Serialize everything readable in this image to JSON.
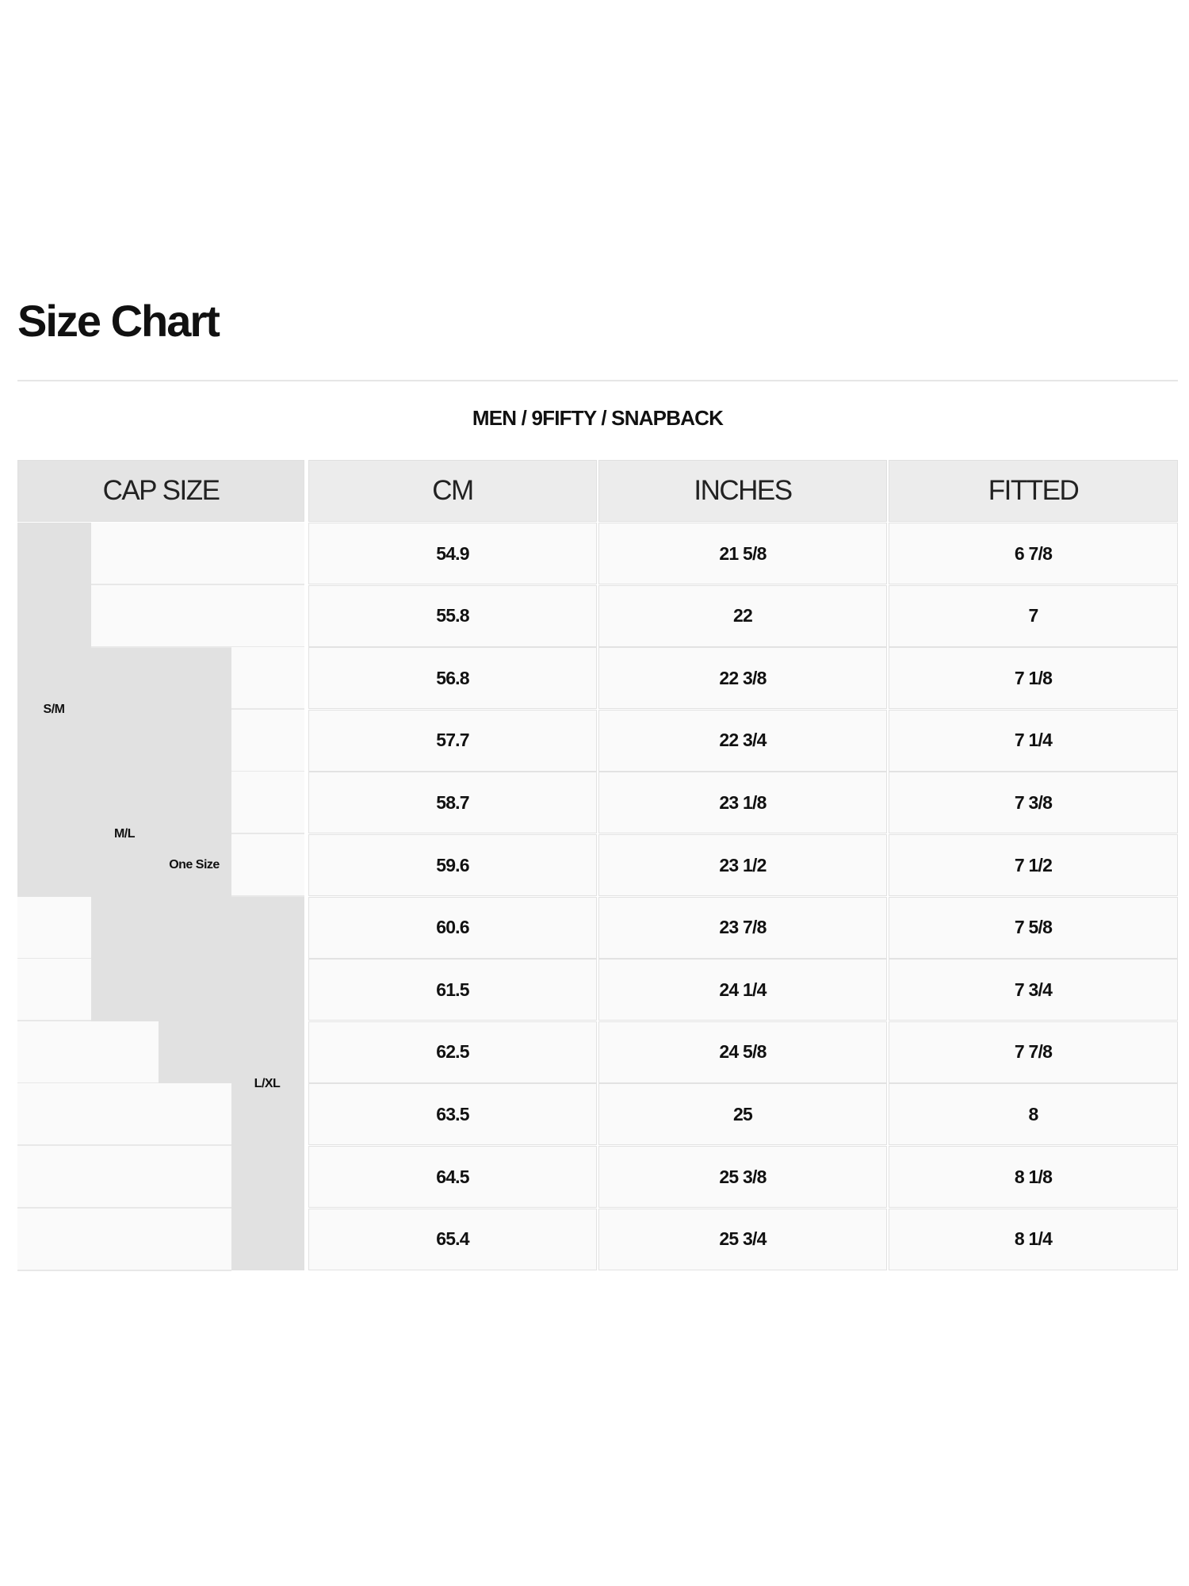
{
  "title": "Size Chart",
  "subtitle": "MEN / 9FIFTY / SNAPBACK",
  "headers": [
    "CAP SIZE",
    "CM",
    "INCHES",
    "FITTED"
  ],
  "cap_size_groups": [
    "S/M",
    "M/L",
    "One Size",
    "L/XL"
  ],
  "rows": [
    {
      "cm": "54.9",
      "inches": "21 5/8",
      "fitted": "6 7/8"
    },
    {
      "cm": "55.8",
      "inches": "22",
      "fitted": "7"
    },
    {
      "cm": "56.8",
      "inches": "22 3/8",
      "fitted": "7 1/8"
    },
    {
      "cm": "57.7",
      "inches": "22 3/4",
      "fitted": "7 1/4"
    },
    {
      "cm": "58.7",
      "inches": "23 1/8",
      "fitted": "7 3/8"
    },
    {
      "cm": "59.6",
      "inches": "23 1/2",
      "fitted": "7 1/2"
    },
    {
      "cm": "60.6",
      "inches": "23 7/8",
      "fitted": "7 5/8"
    },
    {
      "cm": "61.5",
      "inches": "24 1/4",
      "fitted": "7 3/4"
    },
    {
      "cm": "62.5",
      "inches": "24 5/8",
      "fitted": "7 7/8"
    },
    {
      "cm": "63.5",
      "inches": "25",
      "fitted": "8"
    },
    {
      "cm": "64.5",
      "inches": "25 3/8",
      "fitted": "8 1/8"
    },
    {
      "cm": "65.4",
      "inches": "25 3/4",
      "fitted": "8 1/4"
    }
  ],
  "colors": {
    "header_bg": "#ececec",
    "cap_group_bg": "#e1e1e1",
    "cell_bg": "#fafafa"
  }
}
